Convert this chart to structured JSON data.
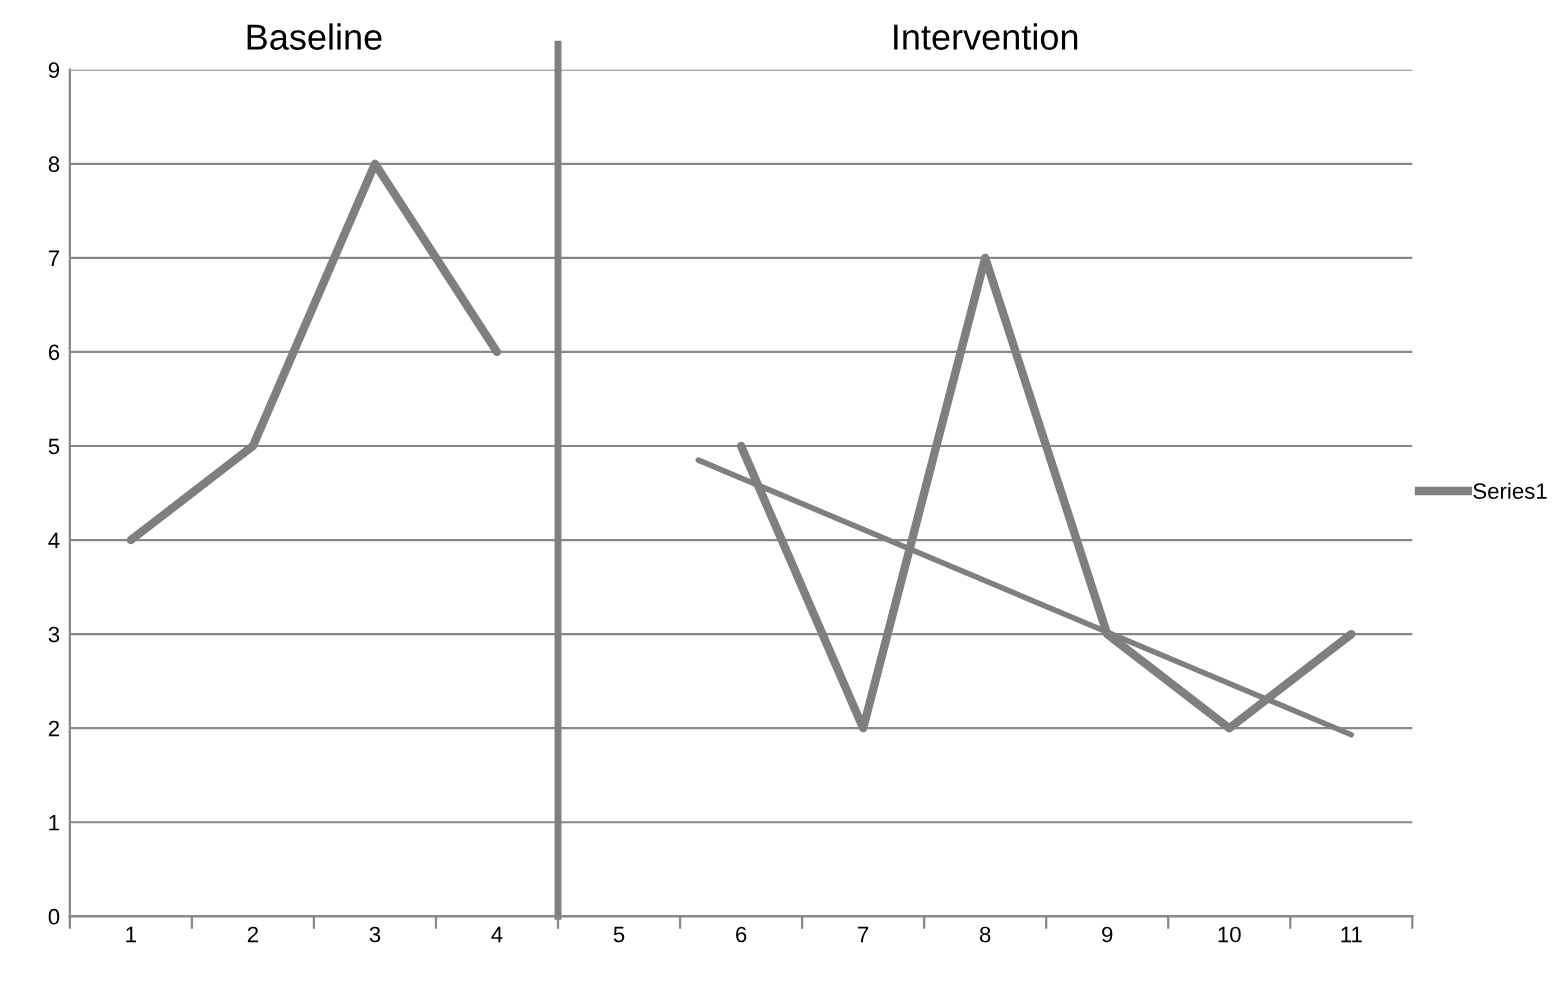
{
  "chart_data": {
    "type": "line",
    "x": [
      1,
      2,
      3,
      4,
      5,
      6,
      7,
      8,
      9,
      10,
      11
    ],
    "series": [
      {
        "name": "Series1",
        "color": "#7f7f7f",
        "values": [
          4,
          5,
          8,
          6,
          null,
          5,
          2,
          7,
          3,
          2,
          3
        ]
      },
      {
        "type": "line",
        "color": "#7f7f7f",
        "x": [
          5.65,
          11
        ],
        "values": [
          4.85,
          1.93
        ]
      }
    ],
    "xlim": [
      0.5,
      11.5
    ],
    "xticks": [
      1,
      2,
      3,
      4,
      5,
      6,
      7,
      8,
      9,
      10,
      11
    ],
    "ylim": [
      0,
      9
    ],
    "yticks": [
      0,
      1,
      2,
      3,
      4,
      5,
      6,
      7,
      8,
      9
    ],
    "ref_lines": [
      {
        "axis": "x",
        "value": 4.5,
        "color": "#7f7f7f"
      }
    ],
    "annotations": [
      "Baseline",
      "Intervention"
    ],
    "grid": "y",
    "legend": "right",
    "marker": "none",
    "line_style": "solid"
  }
}
